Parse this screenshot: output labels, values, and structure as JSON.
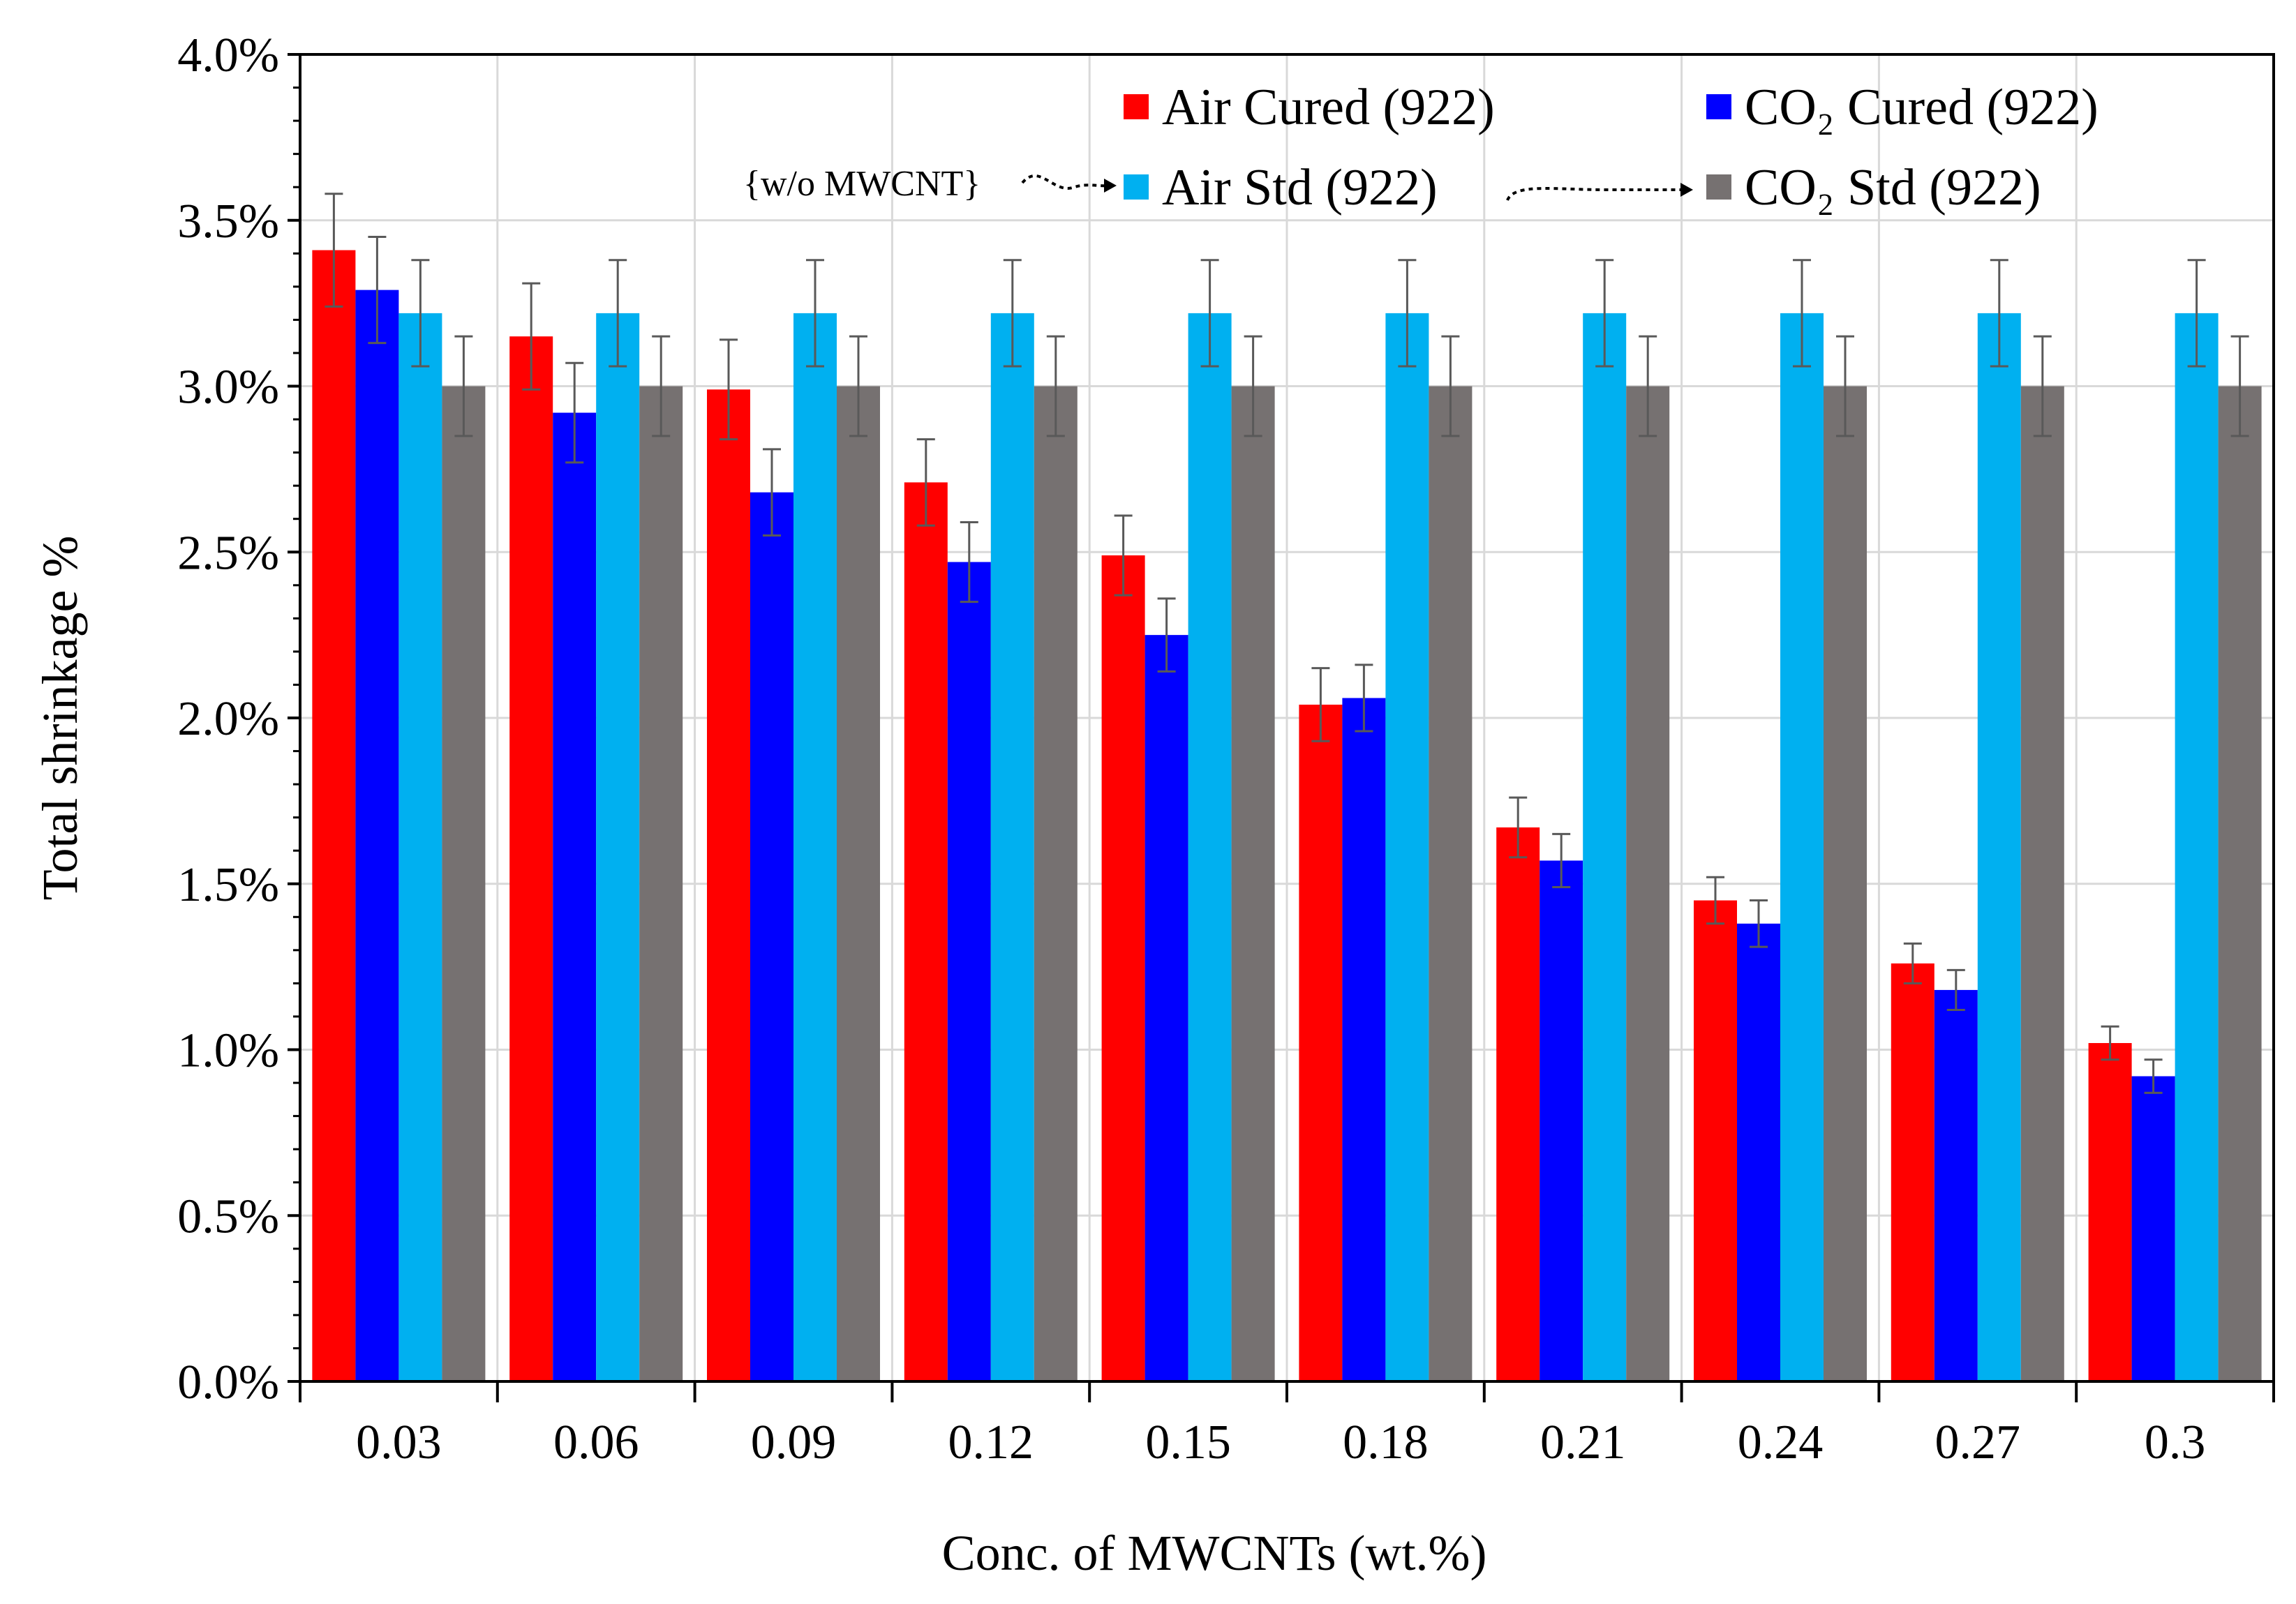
{
  "chart_data": {
    "type": "bar",
    "xlabel": "Conc. of MWCNTs  (wt.%)",
    "ylabel": "Total shrinkage  %",
    "ylim": [
      0,
      0.04
    ],
    "y_ticks": [
      "0.0%",
      "0.5%",
      "1.0%",
      "1.5%",
      "2.0%",
      "2.5%",
      "3.0%",
      "3.5%",
      "4.0%"
    ],
    "categories": [
      "0.03",
      "0.06",
      "0.09",
      "0.12",
      "0.15",
      "0.18",
      "0.21",
      "0.24",
      "0.27",
      "0.3"
    ],
    "grid": true,
    "legend_position": "top-right",
    "annotation": "{w/o MWCNT}",
    "series": [
      {
        "name": "Air Cured (922)",
        "color": "#ff0000",
        "values": [
          0.0341,
          0.0315,
          0.0299,
          0.0271,
          0.0249,
          0.0204,
          0.0167,
          0.0145,
          0.0126,
          0.0102
        ],
        "errors": [
          0.0017,
          0.0016,
          0.0015,
          0.0013,
          0.0012,
          0.0011,
          0.0009,
          0.0007,
          0.0006,
          0.0005
        ]
      },
      {
        "name": "CO₂ Cured (922)",
        "color": "#0000ff",
        "values": [
          0.0329,
          0.0292,
          0.0268,
          0.0247,
          0.0225,
          0.0206,
          0.0157,
          0.0138,
          0.0118,
          0.0092
        ],
        "errors": [
          0.0016,
          0.0015,
          0.0013,
          0.0012,
          0.0011,
          0.001,
          0.0008,
          0.0007,
          0.0006,
          0.0005
        ]
      },
      {
        "name": "Air Std (922)",
        "color": "#00b0f0",
        "values": [
          0.0322,
          0.0322,
          0.0322,
          0.0322,
          0.0322,
          0.0322,
          0.0322,
          0.0322,
          0.0322,
          0.0322
        ],
        "errors": [
          0.0016,
          0.0016,
          0.0016,
          0.0016,
          0.0016,
          0.0016,
          0.0016,
          0.0016,
          0.0016,
          0.0016
        ]
      },
      {
        "name": "CO₂ Std (922)",
        "color": "#767171",
        "values": [
          0.03,
          0.03,
          0.03,
          0.03,
          0.03,
          0.03,
          0.03,
          0.03,
          0.03,
          0.03
        ],
        "errors": [
          0.0015,
          0.0015,
          0.0015,
          0.0015,
          0.0015,
          0.0015,
          0.0015,
          0.0015,
          0.0015,
          0.0015
        ]
      }
    ]
  }
}
